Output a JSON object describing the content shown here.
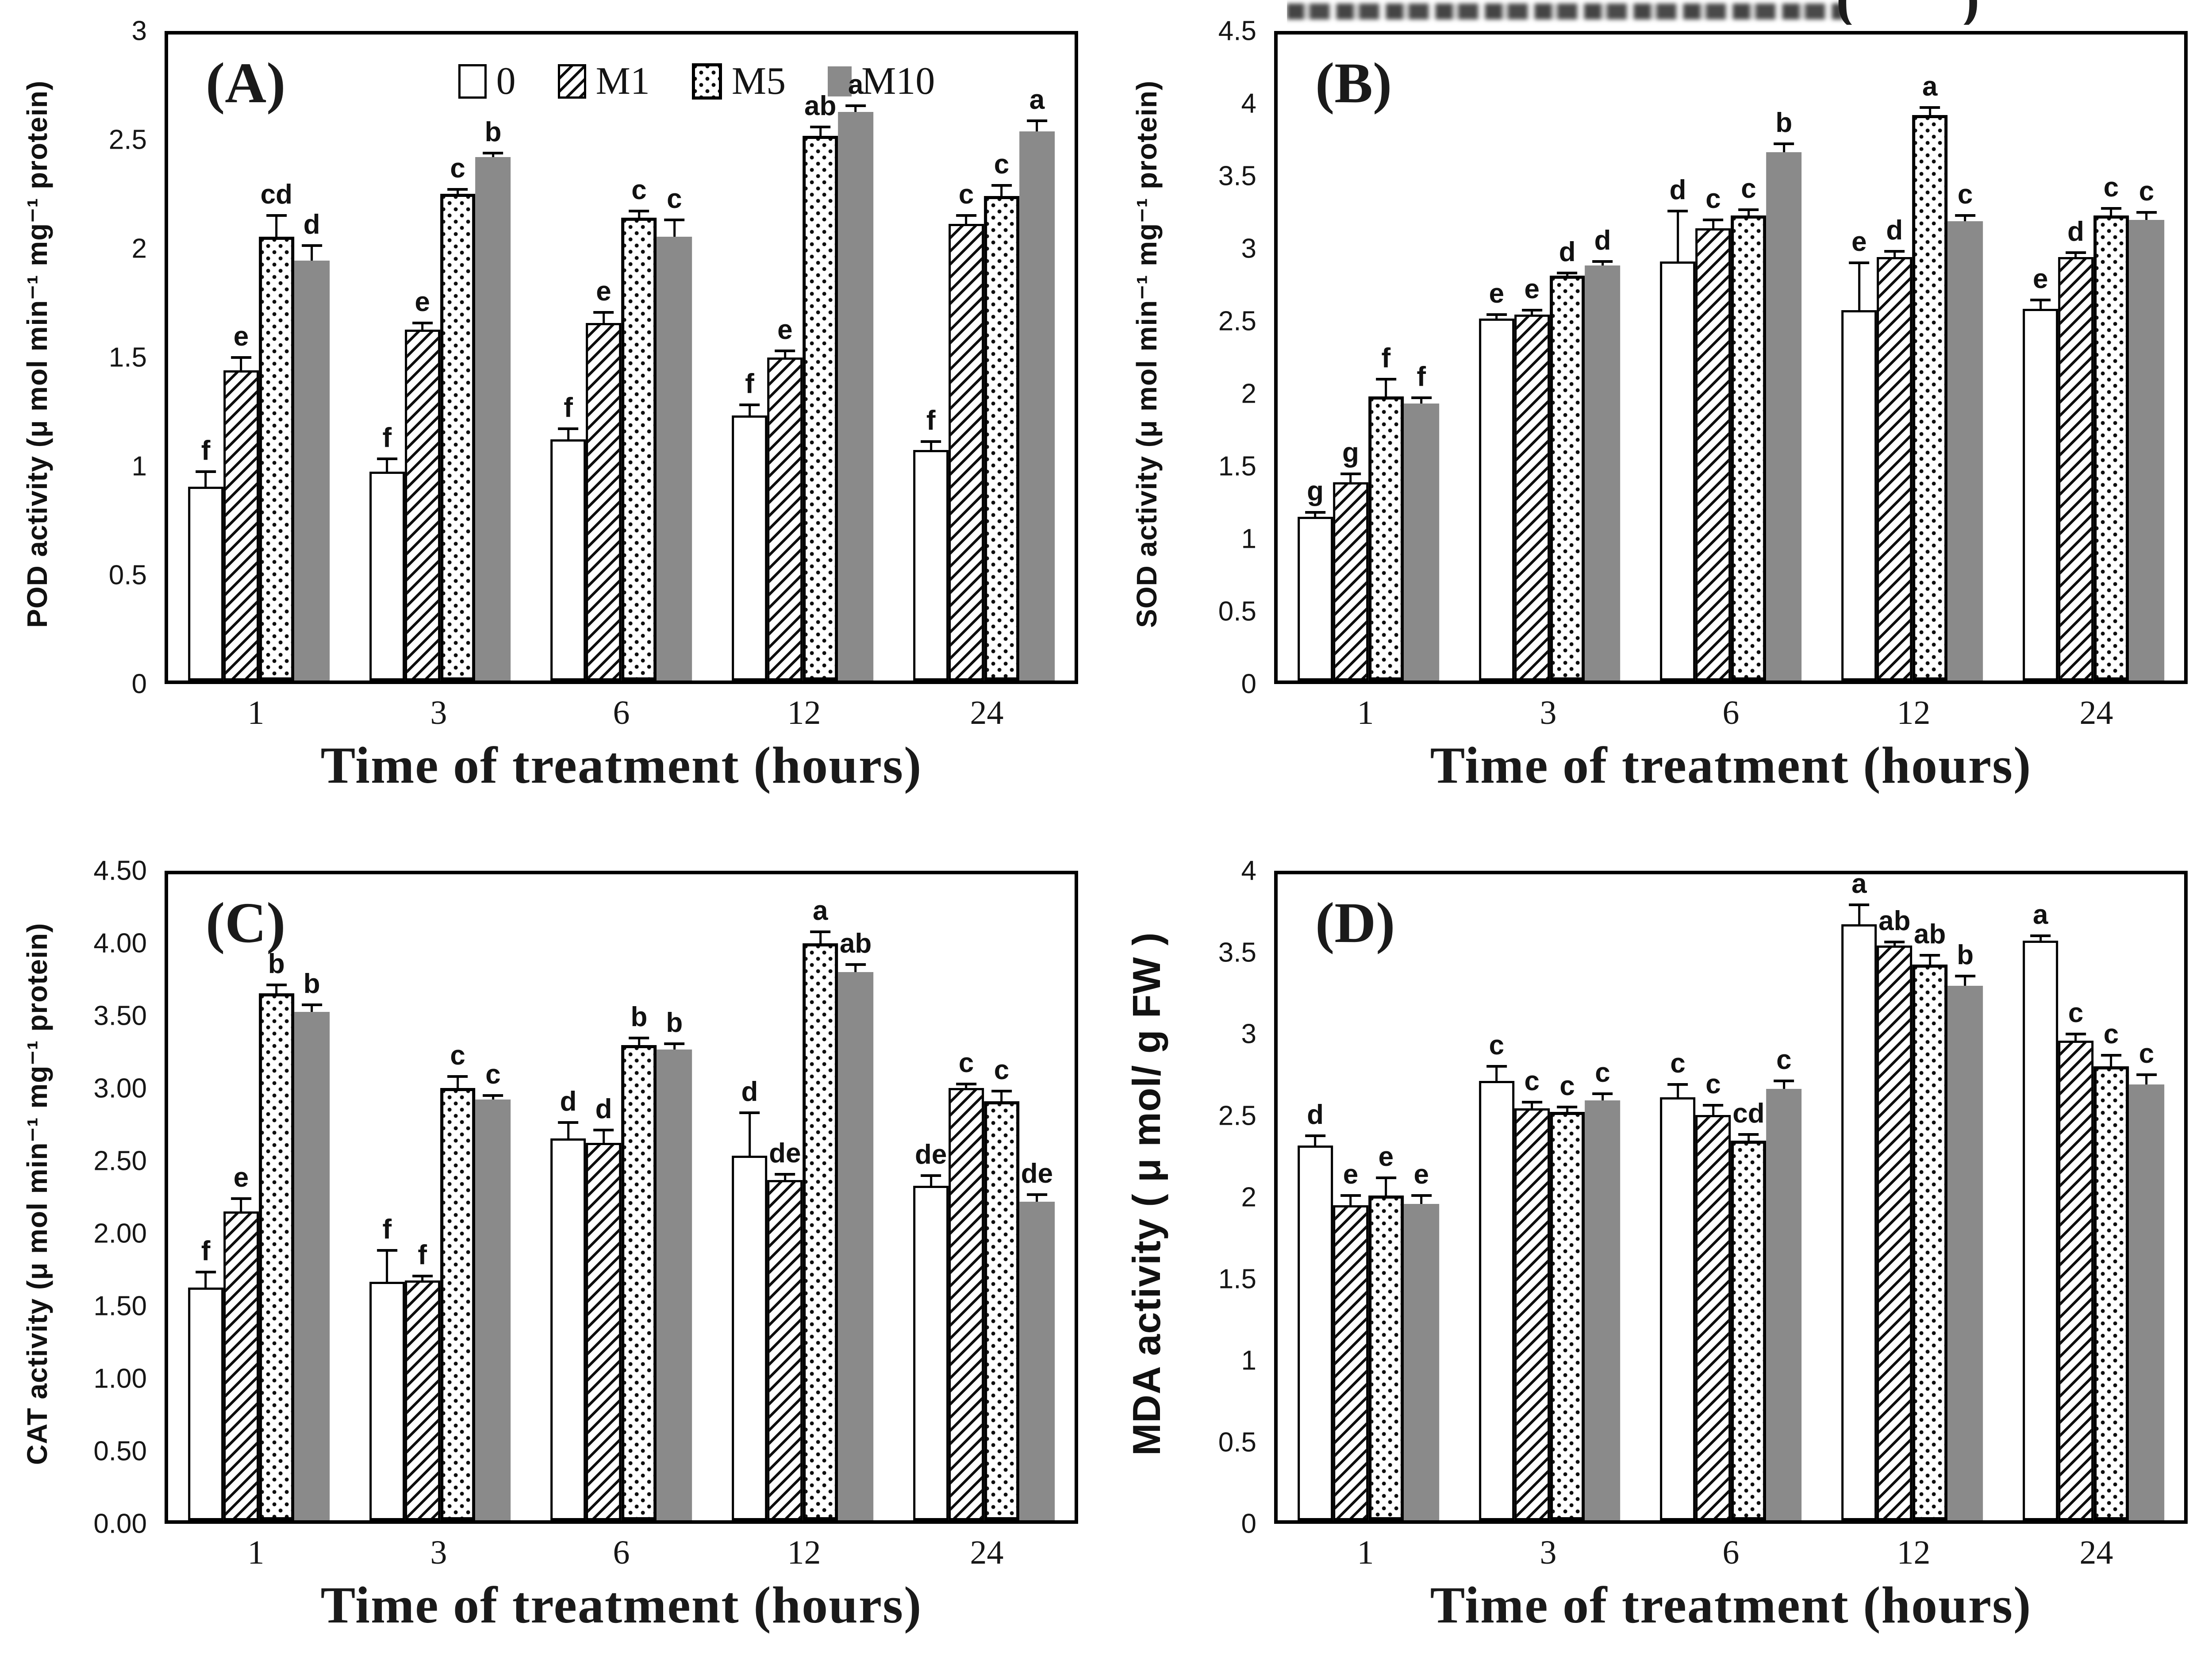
{
  "figure": {
    "colors": {
      "bar_gray": "#8a8a8a",
      "ink": "#111111"
    },
    "legend": {
      "items": [
        {
          "label": "0",
          "pattern": "white"
        },
        {
          "label": "M1",
          "pattern": "hatch"
        },
        {
          "label": "M5",
          "pattern": "dots"
        },
        {
          "label": "M10",
          "pattern": "gray"
        }
      ]
    },
    "artifact": {
      "open": "(",
      "close": ")"
    }
  },
  "chart_data": [
    {
      "id": "A",
      "type": "bar",
      "panel_label": "(A)",
      "ylabel": "POD activity (μ mol min⁻¹ mg⁻¹ protein)",
      "xlabel": "Time of treatment (hours)",
      "ylim": [
        0,
        3
      ],
      "yticks": [
        "3",
        "2.5",
        "2",
        "1.5",
        "1",
        "0.5",
        "0"
      ],
      "categories": [
        "1",
        "3",
        "6",
        "12",
        "24"
      ],
      "grid": false,
      "legend_inside": true,
      "top_artifact": false,
      "series": [
        {
          "name": "0",
          "values": [
            0.9,
            0.97,
            1.12,
            1.23,
            1.07
          ],
          "errors": [
            0.07,
            0.06,
            0.05,
            0.05,
            0.04
          ],
          "letters": [
            "f",
            "f",
            "f",
            "f",
            "f"
          ]
        },
        {
          "name": "M1",
          "values": [
            1.44,
            1.63,
            1.66,
            1.5,
            2.12
          ],
          "errors": [
            0.06,
            0.03,
            0.05,
            0.03,
            0.04
          ],
          "letters": [
            "e",
            "e",
            "e",
            "e",
            "c"
          ]
        },
        {
          "name": "M5",
          "values": [
            2.06,
            2.26,
            2.15,
            2.53,
            2.25
          ],
          "errors": [
            0.1,
            0.02,
            0.03,
            0.04,
            0.05
          ],
          "letters": [
            "cd",
            "c",
            "c",
            "ab",
            "c"
          ]
        },
        {
          "name": "M10",
          "values": [
            1.95,
            2.43,
            2.06,
            2.64,
            2.55
          ],
          "errors": [
            0.07,
            0.02,
            0.08,
            0.03,
            0.05
          ],
          "letters": [
            "d",
            "b",
            "c",
            "a",
            "a"
          ]
        }
      ]
    },
    {
      "id": "B",
      "type": "bar",
      "panel_label": "(B)",
      "ylabel": "SOD activity (μ mol min⁻¹ mg⁻¹ protein)",
      "xlabel": "Time of treatment (hours)",
      "ylim": [
        0,
        4.5
      ],
      "yticks": [
        "4.5",
        "4",
        "3.5",
        "3",
        "2.5",
        "2",
        "1.5",
        "1",
        "0.5",
        "0"
      ],
      "categories": [
        "1",
        "3",
        "6",
        "12",
        "24"
      ],
      "grid": false,
      "legend_inside": false,
      "top_artifact": true,
      "series": [
        {
          "name": "0",
          "values": [
            1.14,
            2.52,
            2.92,
            2.58,
            2.59
          ],
          "errors": [
            0.03,
            0.03,
            0.35,
            0.33,
            0.06
          ],
          "letters": [
            "g",
            "e",
            "d",
            "e",
            "e"
          ]
        },
        {
          "name": "M1",
          "values": [
            1.38,
            2.55,
            3.15,
            2.95,
            2.95
          ],
          "errors": [
            0.06,
            0.03,
            0.06,
            0.04,
            0.03
          ],
          "letters": [
            "g",
            "e",
            "c",
            "d",
            "d"
          ]
        },
        {
          "name": "M5",
          "values": [
            1.98,
            2.82,
            3.24,
            3.94,
            3.24
          ],
          "errors": [
            0.12,
            0.02,
            0.04,
            0.05,
            0.05
          ],
          "letters": [
            "f",
            "d",
            "c",
            "a",
            "c"
          ]
        },
        {
          "name": "M10",
          "values": [
            1.93,
            2.89,
            3.68,
            3.2,
            3.21
          ],
          "errors": [
            0.04,
            0.03,
            0.06,
            0.04,
            0.05
          ],
          "letters": [
            "f",
            "d",
            "b",
            "c",
            "c"
          ]
        }
      ]
    },
    {
      "id": "C",
      "type": "bar",
      "panel_label": "(C)",
      "ylabel": "CAT activity (μ mol min⁻¹ mg⁻¹ protein)",
      "xlabel": "Time of treatment (hours)",
      "ylim": [
        0,
        4.5
      ],
      "yticks": [
        "4.50",
        "4.00",
        "3.50",
        "3.00",
        "2.50",
        "2.00",
        "1.50",
        "1.00",
        "0.50",
        "0.00"
      ],
      "categories": [
        "1",
        "3",
        "6",
        "12",
        "24"
      ],
      "grid": false,
      "legend_inside": false,
      "top_artifact": false,
      "series": [
        {
          "name": "0",
          "values": [
            1.62,
            1.66,
            2.66,
            2.54,
            2.33
          ],
          "errors": [
            0.11,
            0.22,
            0.11,
            0.3,
            0.07
          ],
          "letters": [
            "f",
            "f",
            "d",
            "d",
            "de"
          ]
        },
        {
          "name": "M1",
          "values": [
            2.15,
            1.67,
            2.63,
            2.37,
            3.01
          ],
          "errors": [
            0.09,
            0.03,
            0.09,
            0.04,
            0.03
          ],
          "letters": [
            "e",
            "f",
            "d",
            "de",
            "c"
          ]
        },
        {
          "name": "M5",
          "values": [
            3.67,
            3.01,
            3.31,
            4.02,
            2.92
          ],
          "errors": [
            0.06,
            0.08,
            0.05,
            0.08,
            0.07
          ],
          "letters": [
            "b",
            "c",
            "b",
            "a",
            "c"
          ]
        },
        {
          "name": "M10",
          "values": [
            3.54,
            2.93,
            3.28,
            3.82,
            2.22
          ],
          "errors": [
            0.05,
            0.03,
            0.04,
            0.05,
            0.05
          ],
          "letters": [
            "b",
            "c",
            "b",
            "ab",
            "de"
          ]
        }
      ]
    },
    {
      "id": "D",
      "type": "bar",
      "panel_label": "(D)",
      "ylabel": "MDA activity ( μ mol/ g FW )",
      "xlabel": "Time of treatment (hours)",
      "ylim": [
        0,
        4
      ],
      "yticks": [
        "4",
        "3.5",
        "3",
        "2.5",
        "2",
        "1.5",
        "1",
        "0.5",
        "0"
      ],
      "categories": [
        "1",
        "3",
        "6",
        "12",
        "24"
      ],
      "grid": false,
      "legend_inside": false,
      "top_artifact": false,
      "series": [
        {
          "name": "0",
          "values": [
            2.32,
            2.72,
            2.62,
            3.69,
            3.59
          ],
          "errors": [
            0.06,
            0.09,
            0.08,
            0.12,
            0.03
          ],
          "letters": [
            "d",
            "c",
            "c",
            "a",
            "a"
          ]
        },
        {
          "name": "M1",
          "values": [
            1.95,
            2.55,
            2.51,
            3.56,
            2.97
          ],
          "errors": [
            0.06,
            0.04,
            0.06,
            0.02,
            0.04
          ],
          "letters": [
            "e",
            "c",
            "c",
            "ab",
            "c"
          ]
        },
        {
          "name": "M5",
          "values": [
            2.01,
            2.53,
            2.35,
            3.44,
            2.81
          ],
          "errors": [
            0.11,
            0.03,
            0.04,
            0.06,
            0.07
          ],
          "letters": [
            "e",
            "c",
            "cd",
            "ab",
            "c"
          ]
        },
        {
          "name": "M10",
          "values": [
            1.96,
            2.6,
            2.67,
            3.31,
            2.7
          ],
          "errors": [
            0.05,
            0.04,
            0.05,
            0.06,
            0.06
          ],
          "letters": [
            "e",
            "c",
            "c",
            "b",
            "c"
          ]
        }
      ]
    }
  ]
}
